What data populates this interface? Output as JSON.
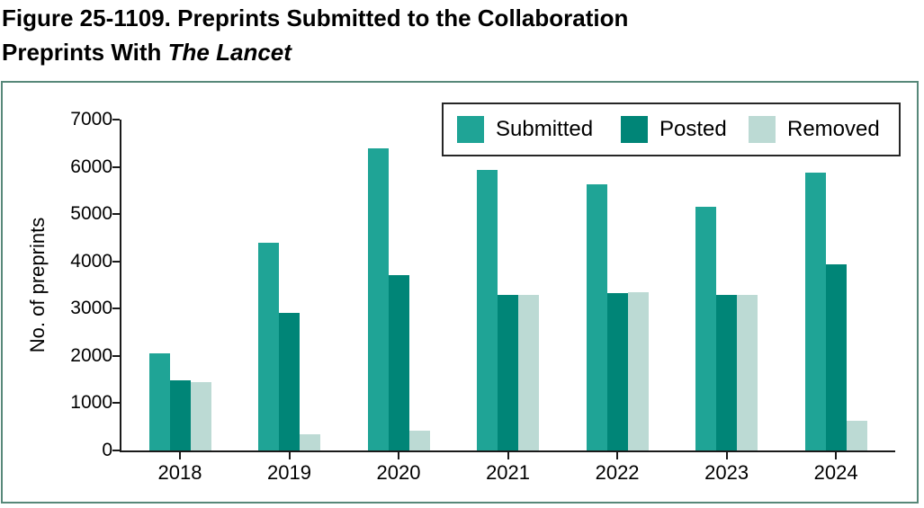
{
  "title": {
    "line1": "Figure 25-1109. Preprints Submitted to the Collaboration",
    "line2_prefix": "Preprints With ",
    "line2_italic": "The Lancet"
  },
  "chart_data": {
    "type": "bar",
    "title": "Figure 25-1109. Preprints Submitted to the Collaboration Preprints With The Lancet",
    "xlabel": "",
    "ylabel": "No. of preprints",
    "ylim": [
      0,
      7000
    ],
    "ytick_step": 1000,
    "yticks": [
      "0",
      "1000",
      "2000",
      "3000",
      "4000",
      "5000",
      "6000",
      "7000"
    ],
    "grid": false,
    "legend_position": "top-right-inside",
    "categories": [
      "2018",
      "2019",
      "2020",
      "2021",
      "2022",
      "2023",
      "2024"
    ],
    "series": [
      {
        "name": "Submitted",
        "color": "#1FA496",
        "values": [
          2050,
          4390,
          6400,
          5940,
          5630,
          5160,
          5880
        ]
      },
      {
        "name": "Posted",
        "color": "#008577",
        "values": [
          1480,
          2910,
          3710,
          3300,
          3330,
          3290,
          3940
        ]
      },
      {
        "name": "Removed",
        "color": "#BCDAD4",
        "values": [
          1450,
          340,
          420,
          3300,
          3340,
          3300,
          630
        ]
      }
    ]
  },
  "colors": {
    "frame_border": "#578879",
    "axis": "#1a1a1a",
    "legend_border": "#262626",
    "text": "#000000",
    "background": "#ffffff"
  }
}
